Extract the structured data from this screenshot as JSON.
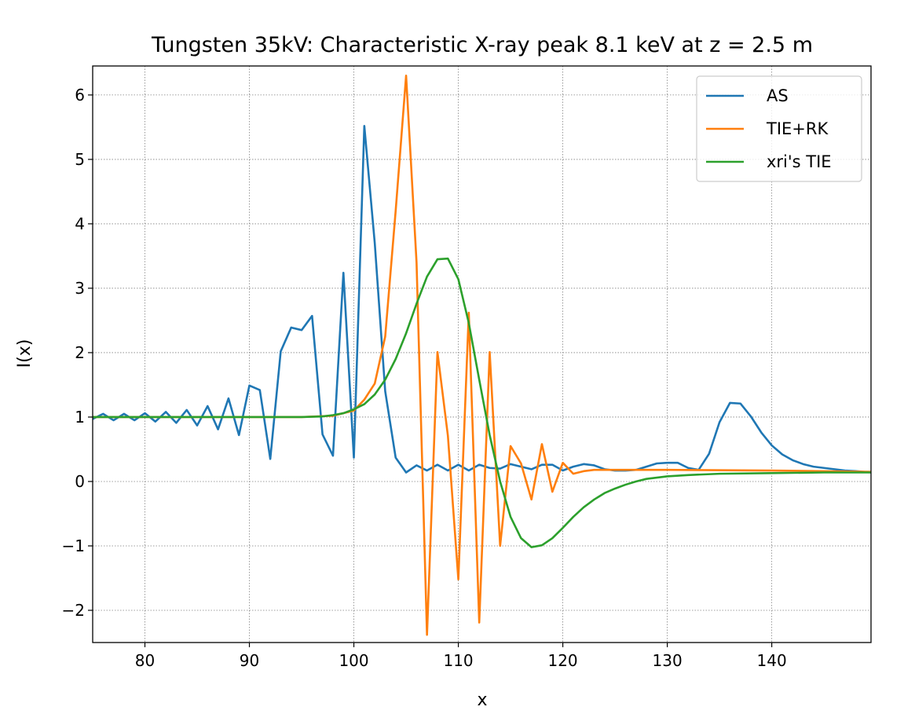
{
  "chart_data": {
    "type": "line",
    "title": "Tungsten 35kV: Characteristic X-ray peak 8.1 keV at z = 2.5 m",
    "xlabel": "x",
    "ylabel": "I(x)",
    "xlim": [
      75,
      149.5
    ],
    "ylim": [
      -2.5,
      6.45
    ],
    "xticks": [
      80,
      90,
      100,
      110,
      120,
      130,
      140
    ],
    "yticks": [
      -2,
      -1,
      0,
      1,
      2,
      3,
      4,
      5,
      6
    ],
    "ytick_labels": [
      "−2",
      "−1",
      "0",
      "1",
      "2",
      "3",
      "4",
      "5",
      "6"
    ],
    "grid": true,
    "legend_position": "top-right",
    "series": [
      {
        "name": "AS",
        "color": "#1f77b4",
        "x": [
          75,
          76,
          77,
          78,
          79,
          80,
          81,
          82,
          83,
          84,
          85,
          86,
          87,
          88,
          89,
          90,
          91,
          92,
          93,
          94,
          95,
          96,
          97,
          98,
          99,
          100,
          101,
          102,
          103,
          104,
          105,
          106,
          107,
          108,
          109,
          110,
          111,
          112,
          113,
          114,
          115,
          116,
          117,
          118,
          119,
          120,
          121,
          122,
          123,
          124,
          125,
          126,
          127,
          128,
          129,
          130,
          131,
          132,
          133,
          134,
          135,
          136,
          137,
          138,
          139,
          140,
          141,
          142,
          143,
          144,
          145,
          146,
          147,
          148,
          149.5
        ],
        "values": [
          0.97,
          1.05,
          0.95,
          1.05,
          0.95,
          1.06,
          0.93,
          1.08,
          0.91,
          1.11,
          0.87,
          1.17,
          0.81,
          1.29,
          0.72,
          1.49,
          1.42,
          0.35,
          2.02,
          2.39,
          2.35,
          2.57,
          0.73,
          0.4,
          3.24,
          0.37,
          5.52,
          3.7,
          1.4,
          0.37,
          0.14,
          0.25,
          0.17,
          0.26,
          0.17,
          0.26,
          0.17,
          0.26,
          0.21,
          0.2,
          0.27,
          0.23,
          0.19,
          0.26,
          0.26,
          0.17,
          0.23,
          0.27,
          0.25,
          0.19,
          0.17,
          0.17,
          0.18,
          0.23,
          0.28,
          0.29,
          0.29,
          0.21,
          0.18,
          0.43,
          0.92,
          1.22,
          1.21,
          1.01,
          0.76,
          0.56,
          0.42,
          0.33,
          0.27,
          0.23,
          0.21,
          0.19,
          0.17,
          0.16,
          0.14
        ]
      },
      {
        "name": "TIE+RK",
        "color": "#ff7f0e",
        "x": [
          75,
          80,
          85,
          90,
          95,
          98,
          100,
          101,
          102,
          103,
          104,
          105,
          106,
          107,
          108,
          109,
          110,
          111,
          112,
          113,
          114,
          115,
          116,
          117,
          118,
          119,
          120,
          121,
          122,
          123,
          125,
          130,
          140,
          149.5
        ],
        "values": [
          1.0,
          1.0,
          1.0,
          1.0,
          1.0,
          1.02,
          1.1,
          1.27,
          1.52,
          2.25,
          4.2,
          6.3,
          3.4,
          -2.38,
          2.01,
          0.71,
          -1.52,
          2.62,
          -2.19,
          2.01,
          -1.0,
          0.55,
          0.28,
          -0.28,
          0.58,
          -0.16,
          0.29,
          0.12,
          0.16,
          0.18,
          0.18,
          0.18,
          0.17,
          0.15
        ]
      },
      {
        "name": "xri's TIE",
        "color": "#2ca02c",
        "x": [
          75,
          80,
          85,
          90,
          95,
          97,
          98,
          99,
          100,
          101,
          102,
          103,
          104,
          105,
          106,
          107,
          108,
          109,
          110,
          111,
          112,
          113,
          114,
          115,
          116,
          117,
          118,
          119,
          120,
          121,
          122,
          123,
          124,
          125,
          126,
          127,
          128,
          129,
          130,
          132,
          135,
          140,
          145,
          149.5
        ],
        "values": [
          1.0,
          1.0,
          1.0,
          1.0,
          1.0,
          1.01,
          1.03,
          1.06,
          1.12,
          1.2,
          1.35,
          1.58,
          1.9,
          2.3,
          2.76,
          3.18,
          3.45,
          3.46,
          3.14,
          2.46,
          1.58,
          0.72,
          0.0,
          -0.55,
          -0.88,
          -1.02,
          -0.99,
          -0.88,
          -0.72,
          -0.55,
          -0.4,
          -0.28,
          -0.18,
          -0.11,
          -0.05,
          0.0,
          0.04,
          0.06,
          0.08,
          0.1,
          0.12,
          0.13,
          0.14,
          0.14
        ]
      }
    ]
  }
}
